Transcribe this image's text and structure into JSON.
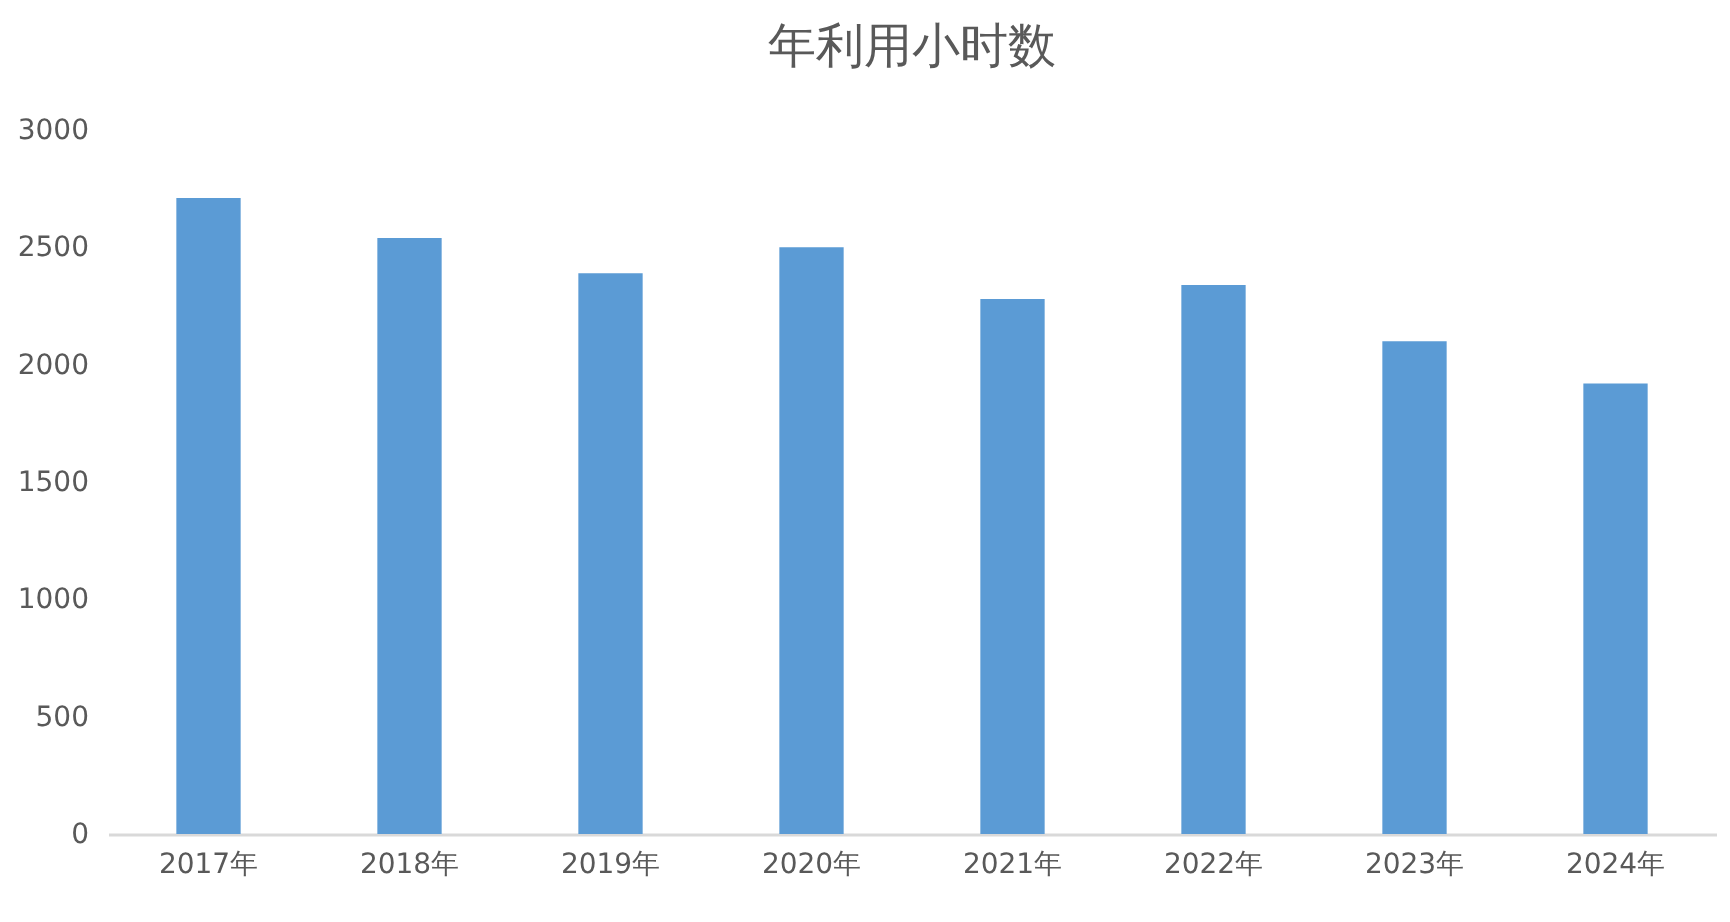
{
  "chart_data": {
    "type": "bar",
    "title": "年利用小时数",
    "categories": [
      "2017年",
      "2018年",
      "2019年",
      "2020年",
      "2021年",
      "2022年",
      "2023年",
      "2024年"
    ],
    "values": [
      2710,
      2540,
      2390,
      2500,
      2280,
      2340,
      2100,
      1920
    ],
    "color": "#5b9bd5",
    "ylim": [
      0,
      3000
    ],
    "yticks": [
      0,
      500,
      1000,
      1500,
      2000,
      2500,
      3000
    ],
    "grid": false
  }
}
